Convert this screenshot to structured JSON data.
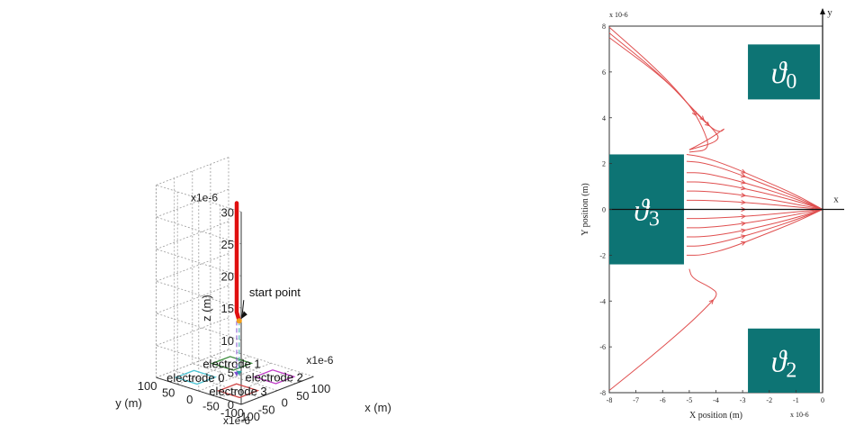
{
  "chart_data": [
    {
      "type": "scatter",
      "projection": "3d",
      "title": "",
      "scale_label": "x1e-6",
      "xlabel": "x (m)",
      "ylabel": "y (m)",
      "zlabel": "z (m)",
      "xlim": [
        -100,
        100
      ],
      "ylim": [
        -100,
        100
      ],
      "zlim": [
        0,
        30
      ],
      "x_ticks": [
        -100,
        -50,
        0,
        50,
        100
      ],
      "y_ticks": [
        -100,
        -50,
        0,
        50,
        100
      ],
      "z_ticks": [
        0,
        5,
        10,
        15,
        20,
        25,
        30
      ],
      "grid": true,
      "electrodes": [
        {
          "label": "electrode 0",
          "color": "#4cc4d4",
          "x": [
            -75,
            -25
          ],
          "y": [
            25,
            75
          ]
        },
        {
          "label": "electrode 1",
          "color": "#3c8c3c",
          "x": [
            25,
            75
          ],
          "y": [
            25,
            75
          ]
        },
        {
          "label": "electrode 2",
          "color": "#c03cc8",
          "x": [
            25,
            75
          ],
          "y": [
            -75,
            -25
          ]
        },
        {
          "label": "electrode 3",
          "color": "#d04848",
          "x": [
            -75,
            -25
          ],
          "y": [
            -75,
            -25
          ]
        }
      ],
      "trajectory": {
        "color": "#e01010",
        "points": [
          {
            "x": 5,
            "y": 0,
            "z": 27
          },
          {
            "x": 5,
            "y": 0,
            "z": 12
          },
          {
            "x": 5,
            "y": 0,
            "z": 10
          },
          {
            "x": 12,
            "y": 0,
            "z": 8.5
          }
        ]
      },
      "annotation": {
        "text": "start point",
        "x": 12,
        "y": 0,
        "z": 8.5
      }
    },
    {
      "type": "line",
      "title": "",
      "xlabel": "X position (m)",
      "ylabel": "Y position (m)",
      "x_scale_label": "x 10-6",
      "y_scale_label": "x 10-6",
      "xlim": [
        -8,
        0
      ],
      "ylim": [
        -8,
        8
      ],
      "x_ticks": [
        -8,
        -7,
        -6,
        -5,
        -4,
        -3,
        -2,
        -1,
        0
      ],
      "y_ticks": [
        -8,
        -6,
        -4,
        -2,
        0,
        2,
        4,
        6,
        8
      ],
      "axis_labels": {
        "x": "x",
        "y": "y"
      },
      "regions": [
        {
          "label": "ϑ0",
          "x": [
            -2.8,
            -0.1
          ],
          "y": [
            4.8,
            7.2
          ]
        },
        {
          "label": "ϑ3",
          "x": [
            -8,
            -5.2
          ],
          "y": [
            -2.4,
            2.4
          ]
        },
        {
          "label": "ϑ2",
          "x": [
            -2.8,
            -0.1
          ],
          "y": [
            -8,
            -5.2
          ]
        }
      ],
      "series_color": "#e05050",
      "series": [
        {
          "values": [
            [
              -8,
              7.95
            ],
            [
              -6.2,
              6.1
            ],
            [
              -5.0,
              4.6
            ],
            [
              -4.5,
              3.6
            ],
            [
              -4.2,
              2.6
            ],
            [
              -5.0,
              2.5
            ]
          ]
        },
        {
          "values": [
            [
              -8,
              7.7
            ],
            [
              -6.0,
              5.8
            ],
            [
              -4.8,
              4.3
            ],
            [
              -4.1,
              3.5
            ],
            [
              -3.8,
              3.0
            ],
            [
              -5.0,
              2.6
            ]
          ]
        },
        {
          "values": [
            [
              -8,
              7.5
            ],
            [
              -5.8,
              5.6
            ],
            [
              -4.6,
              4.0
            ],
            [
              -3.9,
              3.3
            ],
            [
              -3.6,
              3.6
            ],
            [
              -4.2,
              3.1
            ],
            [
              -5.0,
              2.6
            ]
          ]
        },
        {
          "values": [
            [
              -5.1,
              2.4
            ],
            [
              -4.5,
              2.3
            ],
            [
              -3.5,
              1.9
            ],
            [
              -2.3,
              1.3
            ],
            [
              -1.1,
              0.7
            ],
            [
              0,
              0
            ]
          ]
        },
        {
          "values": [
            [
              -5.1,
              2.1
            ],
            [
              -4.5,
              2.05
            ],
            [
              -3.5,
              1.7
            ],
            [
              -2.3,
              1.15
            ],
            [
              -1.1,
              0.6
            ],
            [
              0,
              0
            ]
          ]
        },
        {
          "values": [
            [
              -5.1,
              1.6
            ],
            [
              -4.5,
              1.6
            ],
            [
              -3.5,
              1.35
            ],
            [
              -2.3,
              0.95
            ],
            [
              -1.1,
              0.5
            ],
            [
              0,
              0
            ]
          ]
        },
        {
          "values": [
            [
              -5.1,
              1.2
            ],
            [
              -4.5,
              1.2
            ],
            [
              -3.5,
              1.05
            ],
            [
              -2.3,
              0.75
            ],
            [
              -1.1,
              0.4
            ],
            [
              0,
              0
            ]
          ]
        },
        {
          "values": [
            [
              -5.1,
              0.8
            ],
            [
              -4.5,
              0.8
            ],
            [
              -3.5,
              0.7
            ],
            [
              -2.3,
              0.5
            ],
            [
              -1.1,
              0.25
            ],
            [
              0,
              0
            ]
          ]
        },
        {
          "values": [
            [
              -5.1,
              0.4
            ],
            [
              -4.5,
              0.4
            ],
            [
              -3.5,
              0.35
            ],
            [
              -2.3,
              0.25
            ],
            [
              -1.1,
              0.12
            ],
            [
              0,
              0
            ]
          ]
        },
        {
          "values": [
            [
              -5.1,
              0
            ],
            [
              -3.5,
              0
            ],
            [
              -2.3,
              0
            ],
            [
              -1.1,
              0
            ],
            [
              0,
              0
            ]
          ]
        },
        {
          "values": [
            [
              -5.1,
              -0.4
            ],
            [
              -4.5,
              -0.4
            ],
            [
              -3.5,
              -0.35
            ],
            [
              -2.3,
              -0.25
            ],
            [
              -1.1,
              -0.12
            ],
            [
              0,
              0
            ]
          ]
        },
        {
          "values": [
            [
              -5.1,
              -0.8
            ],
            [
              -4.5,
              -0.8
            ],
            [
              -3.5,
              -0.7
            ],
            [
              -2.3,
              -0.5
            ],
            [
              -1.1,
              -0.25
            ],
            [
              0,
              0
            ]
          ]
        },
        {
          "values": [
            [
              -5.1,
              -1.2
            ],
            [
              -4.5,
              -1.2
            ],
            [
              -3.5,
              -1.05
            ],
            [
              -2.3,
              -0.75
            ],
            [
              -1.1,
              -0.4
            ],
            [
              0,
              0
            ]
          ]
        },
        {
          "values": [
            [
              -5.1,
              -1.6
            ],
            [
              -4.5,
              -1.6
            ],
            [
              -3.5,
              -1.35
            ],
            [
              -2.3,
              -0.95
            ],
            [
              -1.1,
              -0.5
            ],
            [
              0,
              0
            ]
          ]
        },
        {
          "values": [
            [
              -5.1,
              -2.0
            ],
            [
              -4.5,
              -2.0
            ],
            [
              -3.5,
              -1.7
            ],
            [
              -2.3,
              -1.15
            ],
            [
              -1.1,
              -0.6
            ],
            [
              0,
              0
            ]
          ]
        },
        {
          "values": [
            [
              -8,
              -7.9
            ],
            [
              -6.5,
              -6.5
            ],
            [
              -5.0,
              -5.0
            ],
            [
              -4.3,
              -4.2
            ],
            [
              -3.9,
              -3.7
            ],
            [
              -4.2,
              -3.4
            ],
            [
              -4.9,
              -3.0
            ],
            [
              -5.0,
              -2.6
            ]
          ]
        }
      ]
    }
  ]
}
